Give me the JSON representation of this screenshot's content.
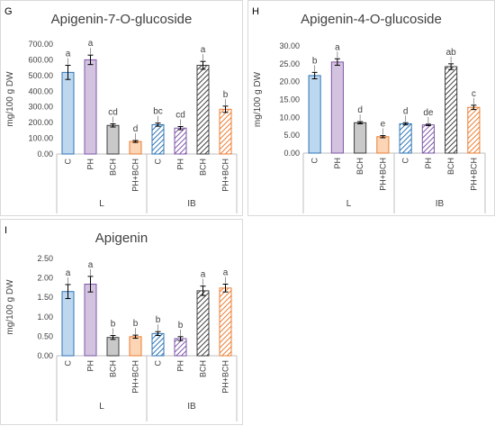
{
  "chart_data": [
    {
      "panel": "G",
      "type": "bar",
      "title": "Apigenin-7-O-glucoside",
      "ylabel": "mg/100 g DW",
      "ylim": [
        0,
        700
      ],
      "yticks": [
        "0.00",
        "100.00",
        "200.00",
        "300.00",
        "400.00",
        "500.00",
        "600.00",
        "700.00"
      ],
      "categories": [
        "C",
        "PH",
        "BCH",
        "PH+BCH",
        "C",
        "PH",
        "BCH",
        "PH+BCH"
      ],
      "groups": [
        "L",
        "IB"
      ],
      "values": [
        520,
        600,
        182,
        80,
        187,
        165,
        565,
        285
      ],
      "errors": [
        45,
        30,
        10,
        6,
        10,
        10,
        25,
        20
      ],
      "letters": [
        "a",
        "a",
        "cd",
        "d",
        "bc",
        "cd",
        "a",
        "b"
      ]
    },
    {
      "panel": "H",
      "type": "bar",
      "title": "Apigenin-4-O-glucoside",
      "ylabel": "mg/100 g DW",
      "ylim": [
        0,
        30
      ],
      "yticks": [
        "0.00",
        "5.00",
        "10.00",
        "15.00",
        "20.00",
        "25.00",
        "30.00"
      ],
      "categories": [
        "C",
        "PH",
        "BCH",
        "PH+BCH",
        "C",
        "PH",
        "BCH",
        "PH+BCH"
      ],
      "groups": [
        "L",
        "IB"
      ],
      "values": [
        21.7,
        25.5,
        8.5,
        4.6,
        8.2,
        7.9,
        24.2,
        12.8
      ],
      "errors": [
        0.9,
        0.9,
        0.3,
        0.3,
        0.3,
        0.2,
        0.8,
        0.6
      ],
      "letters": [
        "b",
        "a",
        "d",
        "e",
        "d",
        "de",
        "ab",
        "c"
      ]
    },
    {
      "panel": "I",
      "type": "bar",
      "title": "Apigenin",
      "ylabel": "mg/100 g DW",
      "ylim": [
        0,
        2.5
      ],
      "yticks": [
        "0.00",
        "0.50",
        "1.00",
        "1.50",
        "2.00",
        "2.50"
      ],
      "categories": [
        "C",
        "PH",
        "BCH",
        "PH+BCH",
        "C",
        "PH",
        "BCH",
        "PH+BCH"
      ],
      "groups": [
        "L",
        "IB"
      ],
      "values": [
        1.65,
        1.84,
        0.47,
        0.49,
        0.57,
        0.44,
        1.67,
        1.74
      ],
      "errors": [
        0.18,
        0.2,
        0.05,
        0.04,
        0.05,
        0.05,
        0.12,
        0.1
      ],
      "letters": [
        "a",
        "a",
        "b",
        "b",
        "b",
        "b",
        "a",
        "a"
      ]
    }
  ],
  "colors": {
    "fill": [
      "#bdd7ee",
      "#d3c3e0",
      "#c9c9c9",
      "#fbd5b5"
    ],
    "stroke": [
      "#2e75b6",
      "#7e57a8",
      "#404040",
      "#ed7d31"
    ],
    "axis": "#bfbfbf",
    "text": "#404040"
  }
}
